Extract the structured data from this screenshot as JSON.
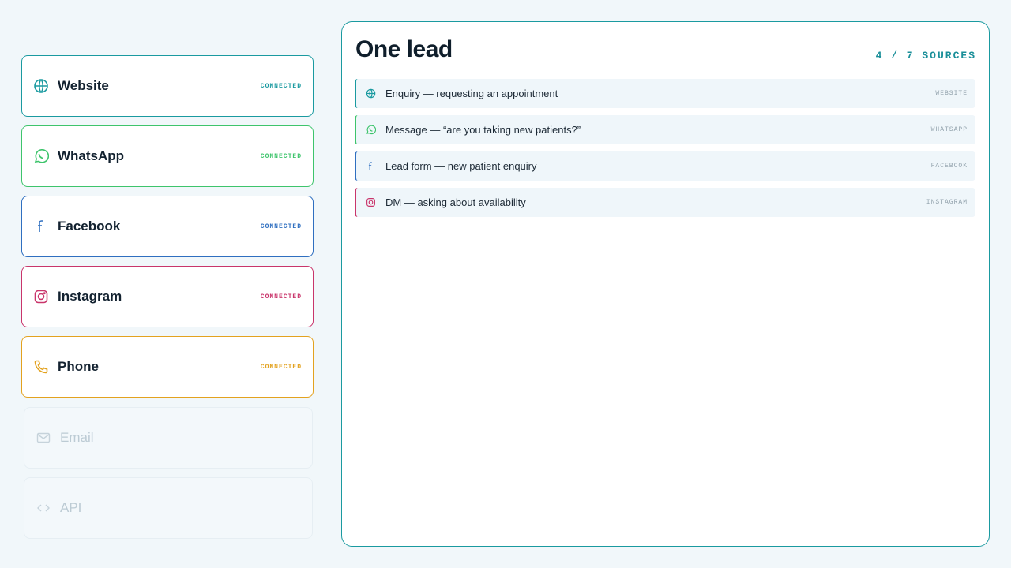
{
  "sources": [
    {
      "name": "Website",
      "status": "CONNECTED"
    },
    {
      "name": "WhatsApp",
      "status": "CONNECTED"
    },
    {
      "name": "Facebook",
      "status": "CONNECTED"
    },
    {
      "name": "Instagram",
      "status": "CONNECTED"
    },
    {
      "name": "Phone",
      "status": "CONNECTED"
    },
    {
      "name": "Email"
    },
    {
      "name": "API"
    }
  ],
  "panel": {
    "title": "One lead",
    "count": "4 / 7 SOURCES",
    "messages": [
      {
        "text": "Enquiry — requesting an appointment",
        "source": "WEBSITE"
      },
      {
        "text": "Message — “are you taking new patients?”",
        "source": "WHATSAPP"
      },
      {
        "text": "Lead form — new patient enquiry",
        "source": "FACEBOOK"
      },
      {
        "text": "DM — asking about availability",
        "source": "INSTAGRAM"
      }
    ]
  }
}
